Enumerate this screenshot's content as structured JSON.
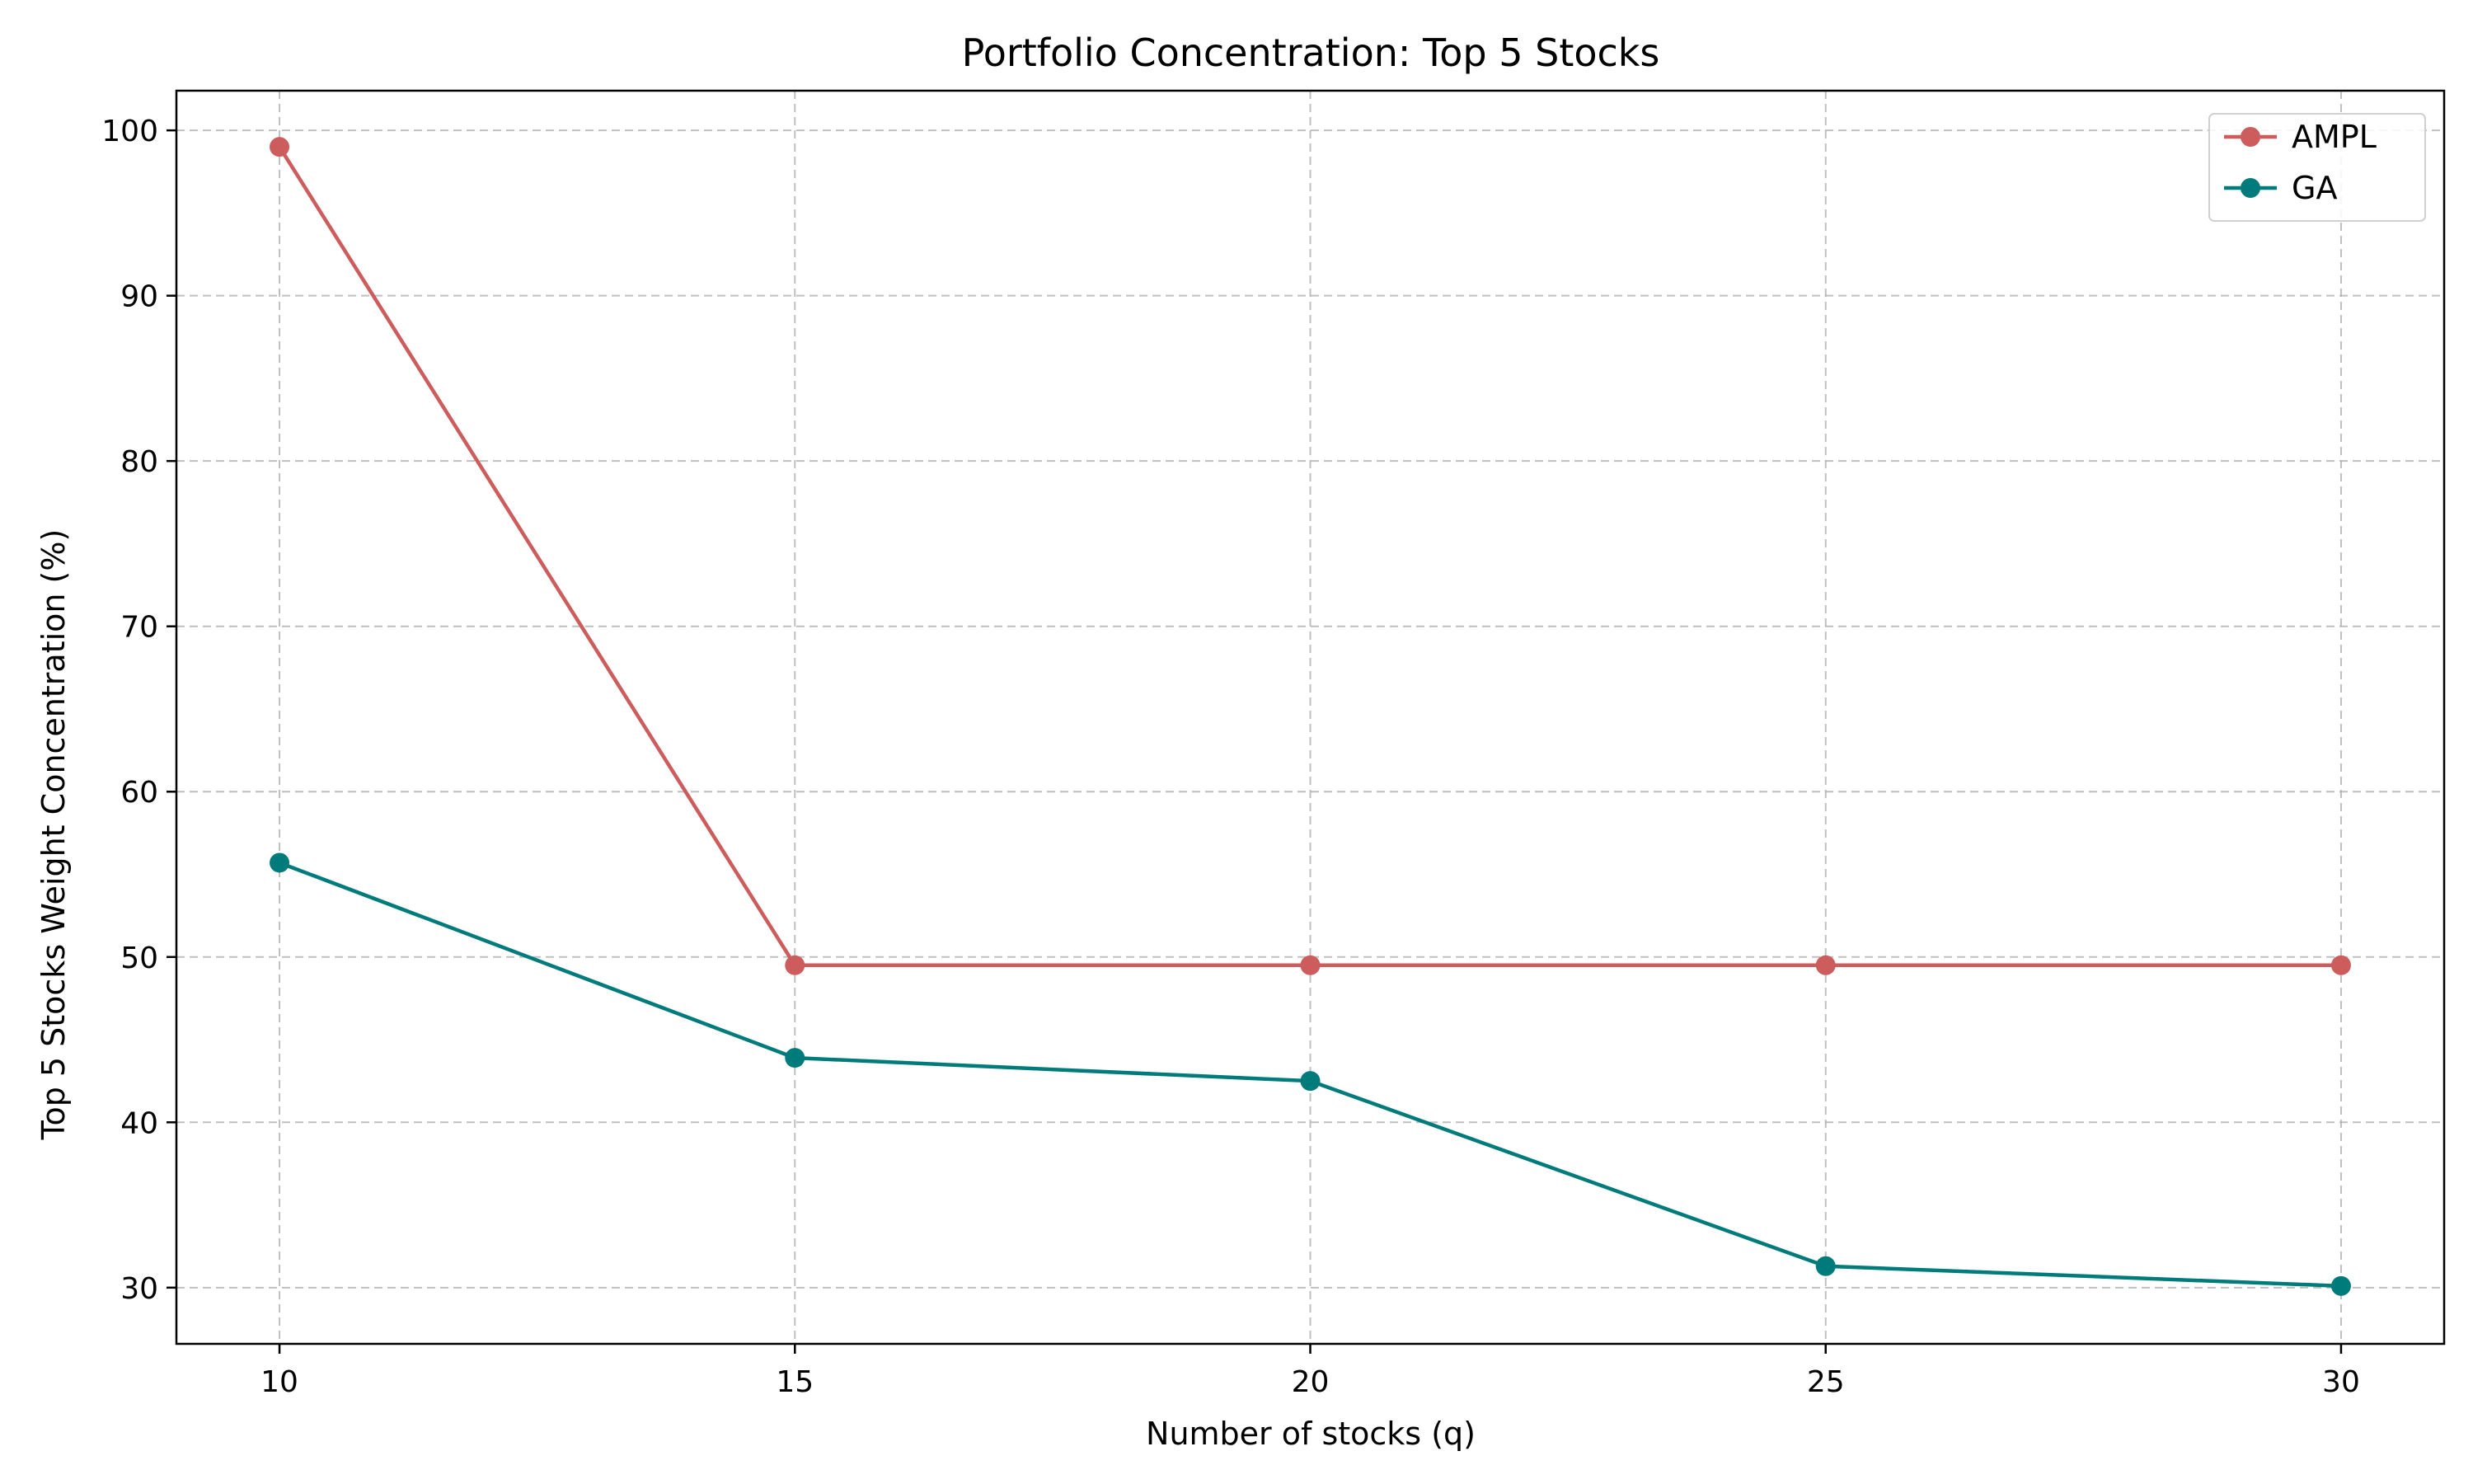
{
  "chart_data": {
    "type": "line",
    "title": "Portfolio Concentration: Top 5 Stocks",
    "xlabel": "Number of stocks (q)",
    "ylabel": "Top 5 Stocks Weight Concentration (%)",
    "x": [
      10,
      15,
      20,
      25,
      30
    ],
    "xticks": [
      "10",
      "15",
      "20",
      "25",
      "30"
    ],
    "yticks": [
      "30",
      "40",
      "50",
      "60",
      "70",
      "80",
      "90",
      "100"
    ],
    "xlim": [
      9,
      31
    ],
    "ylim": [
      26.6,
      102.4
    ],
    "grid": true,
    "legend_position": "top-right",
    "series": [
      {
        "name": "AMPL",
        "color": "#cd5c5c",
        "values": [
          99.0,
          49.5,
          49.5,
          49.5,
          49.5
        ]
      },
      {
        "name": "GA",
        "color": "#007b7b",
        "values": [
          55.7,
          43.9,
          42.5,
          31.3,
          30.1
        ]
      }
    ]
  }
}
